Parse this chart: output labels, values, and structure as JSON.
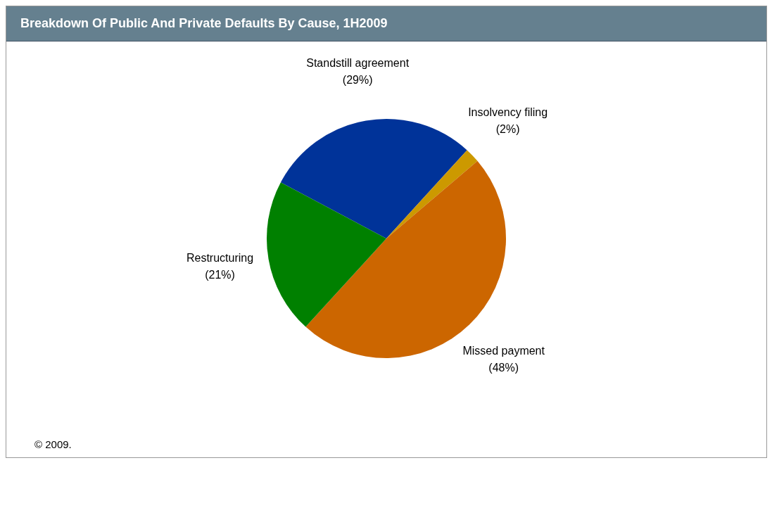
{
  "chart_data": {
    "type": "pie",
    "title": "Breakdown Of Public And Private Defaults By Cause, 1H2009",
    "categories": [
      "Standstill agreement",
      "Insolvency filing",
      "Missed payment",
      "Restructuring"
    ],
    "values": [
      29,
      2,
      48,
      21
    ],
    "colors": [
      "#003399",
      "#cc9900",
      "#cc6600",
      "#008000"
    ],
    "value_labels": [
      "(29%)",
      "(2%)",
      "(48%)",
      "(21%)"
    ],
    "legend": false,
    "annotations": [
      "© 2009."
    ]
  }
}
